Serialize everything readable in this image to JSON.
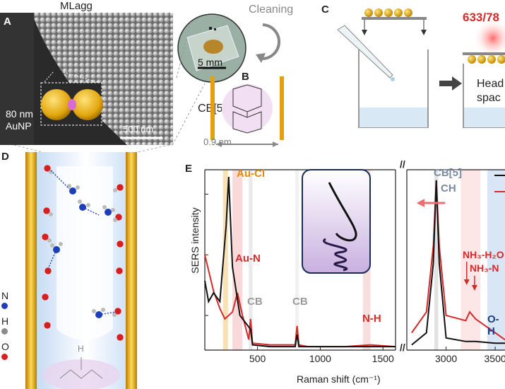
{
  "panels": {
    "A": {
      "label": "A",
      "title": "MLagg",
      "inset_label_line1": "80 nm",
      "inset_label_line2": "AuNP",
      "scalebar": "500 nm",
      "photo_scalebar": "5 mm",
      "cleaning": "Cleaning"
    },
    "B": {
      "label": "B",
      "molecule": "CB[5]",
      "gap": "0.9 nm"
    },
    "C": {
      "label": "C",
      "laser": "633/78",
      "headspace_line1": "Head",
      "headspace_line2": "spac"
    },
    "D": {
      "label": "D",
      "legend": [
        {
          "symbol": "N",
          "color": "#1c3fb8"
        },
        {
          "symbol": "H",
          "color": "#8a8a8a"
        },
        {
          "symbol": "O",
          "color": "#d42020"
        }
      ],
      "cb_symbol": "H"
    },
    "E": {
      "label": "E",
      "ylabel": "SERS intensity",
      "xlabel": "Raman shift (cm⁻¹)",
      "annotations": {
        "au_cl": "Au-Cl",
        "au_n": "Au-N",
        "cb1": "CB",
        "cb2": "CB",
        "n_h": "N-H",
        "cb5": "CB[5]",
        "ch": "CH",
        "nh3_h2o": "NH₃-H₂O",
        "nh3_n": "NH₃-N",
        "o_h": "O-H",
        "break_mark": "//"
      },
      "colors": {
        "red": "#d42a2a",
        "black": "#111111",
        "orange": "#e08a00",
        "gray": "#9a9a9a",
        "navy": "#1c3f8a",
        "cbgray": "#7a8aa0"
      }
    }
  },
  "chart_data": {
    "type": "line",
    "xlabel": "Raman shift (cm⁻¹)",
    "ylabel": "SERS intensity",
    "axis_break": [
      1600,
      2600
    ],
    "xticks": [
      500,
      1000,
      1500,
      3000,
      3500
    ],
    "series": [
      {
        "color": "red",
        "x": [
          80,
          150,
          200,
          240,
          300,
          340,
          380,
          430,
          445,
          460,
          600,
          800,
          815,
          830,
          900,
          1200,
          1400,
          1600,
          2650,
          2800,
          2870,
          2900,
          2930,
          3000,
          3200,
          3240,
          3300,
          3500,
          3600
        ],
        "y": [
          0.55,
          0.34,
          0.24,
          0.18,
          0.22,
          0.33,
          0.2,
          0.06,
          0.18,
          0.04,
          0.03,
          0.03,
          0.14,
          0.03,
          0.02,
          0.02,
          0.03,
          0.02,
          0.1,
          0.22,
          0.6,
          0.98,
          0.6,
          0.2,
          0.17,
          0.22,
          0.18,
          0.1,
          0.06
        ]
      },
      {
        "color": "black",
        "x": [
          80,
          110,
          150,
          200,
          250,
          270,
          300,
          360,
          445,
          460,
          600,
          800,
          815,
          830,
          900,
          1200,
          1600,
          2650,
          2800,
          2870,
          2900,
          2930,
          3000,
          3200,
          3300,
          3500,
          3600
        ],
        "y": [
          0.4,
          0.28,
          0.33,
          0.28,
          0.72,
          1.0,
          0.48,
          0.2,
          0.12,
          0.03,
          0.02,
          0.02,
          0.09,
          0.02,
          0.02,
          0.02,
          0.02,
          0.03,
          0.1,
          0.5,
          0.98,
          0.5,
          0.07,
          0.05,
          0.05,
          0.04,
          0.04
        ]
      }
    ]
  }
}
